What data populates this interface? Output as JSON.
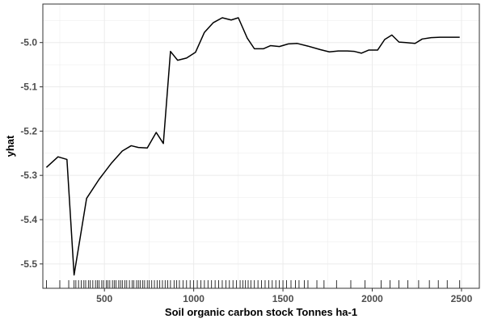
{
  "chart_data": {
    "type": "line",
    "title": "",
    "xlabel": "Soil organic carbon stock Tonnes ha-1",
    "ylabel": "yhat",
    "xlim": [
      155,
      2600
    ],
    "ylim": [
      -5.555,
      -4.913
    ],
    "x_ticks": [
      500,
      1000,
      1500,
      2000,
      2500
    ],
    "x_tick_labels": [
      "500",
      "1000",
      "1500",
      "2000",
      "2500"
    ],
    "y_ticks": [
      -5.5,
      -5.4,
      -5.3,
      -5.2,
      -5.1,
      -5.0
    ],
    "y_tick_labels": [
      "-5.5",
      "-5.4",
      "-5.3",
      "-5.2",
      "-5.1",
      "-5.0"
    ],
    "grid": true,
    "colors": {
      "line": "#000000",
      "grid": "#ebebeb",
      "panel_border": "#333333",
      "rug": "#000000"
    },
    "series": [
      {
        "x": [
          175,
          240,
          290,
          330,
          400,
          470,
          540,
          600,
          650,
          690,
          740,
          790,
          830,
          870,
          910,
          960,
          1010,
          1060,
          1110,
          1160,
          1210,
          1250,
          1300,
          1340,
          1390,
          1430,
          1480,
          1530,
          1580,
          1640,
          1710,
          1760,
          1810,
          1860,
          1900,
          1940,
          1980,
          2030,
          2070,
          2110,
          2150,
          2190,
          2240,
          2280,
          2330,
          2380,
          2430,
          2490
        ],
        "y": [
          -5.282,
          -5.258,
          -5.264,
          -5.525,
          -5.352,
          -5.309,
          -5.272,
          -5.245,
          -5.233,
          -5.237,
          -5.238,
          -5.203,
          -5.228,
          -5.02,
          -5.04,
          -5.035,
          -5.022,
          -4.977,
          -4.955,
          -4.944,
          -4.949,
          -4.944,
          -4.99,
          -5.014,
          -5.014,
          -5.007,
          -5.009,
          -5.003,
          -5.002,
          -5.008,
          -5.016,
          -5.021,
          -5.019,
          -5.019,
          -5.02,
          -5.024,
          -5.017,
          -5.017,
          -4.993,
          -4.983,
          -4.999,
          -5.0,
          -5.002,
          -4.992,
          -4.989,
          -4.988,
          -4.988,
          -4.988
        ]
      }
    ],
    "rug_x": [
      175,
      250,
      300,
      330,
      340,
      355,
      370,
      385,
      395,
      410,
      420,
      435,
      450,
      460,
      470,
      485,
      495,
      510,
      520,
      530,
      545,
      555,
      565,
      580,
      590,
      600,
      615,
      625,
      640,
      655,
      665,
      680,
      690,
      700,
      715,
      725,
      740,
      750,
      765,
      780,
      795,
      810,
      825,
      840,
      855,
      870,
      890,
      905,
      920,
      940,
      960,
      980,
      1000,
      1020,
      1040,
      1060,
      1080,
      1100,
      1120,
      1140,
      1160,
      1180,
      1200,
      1220,
      1240,
      1260,
      1275,
      1290,
      1305,
      1320,
      1340,
      1360,
      1380,
      1400,
      1420,
      1440,
      1460,
      1480,
      1500,
      1520,
      1545,
      1570,
      1590,
      1620,
      1640,
      1690,
      1730,
      1800,
      1880,
      1960,
      2050,
      2100,
      2150,
      2200,
      2260,
      2320,
      2370,
      2420,
      2490
    ]
  }
}
